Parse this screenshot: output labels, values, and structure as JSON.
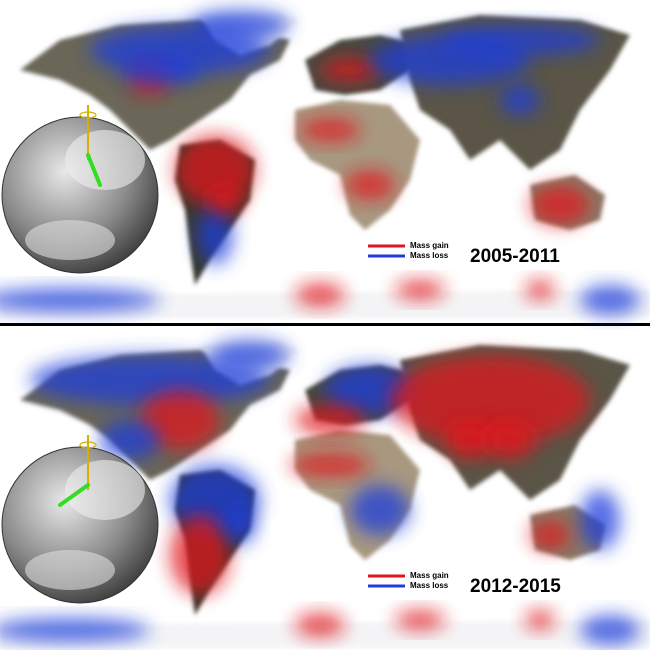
{
  "panels": [
    {
      "period": "2005-2011",
      "legend": [
        {
          "label": "Mass gain",
          "color": "#e0141e"
        },
        {
          "label": "Mass loss",
          "color": "#1e3cdc"
        }
      ]
    },
    {
      "period": "2012-2015",
      "legend": [
        {
          "label": "Mass gain",
          "color": "#e0141e"
        },
        {
          "label": "Mass loss",
          "color": "#1e3cdc"
        }
      ]
    }
  ]
}
